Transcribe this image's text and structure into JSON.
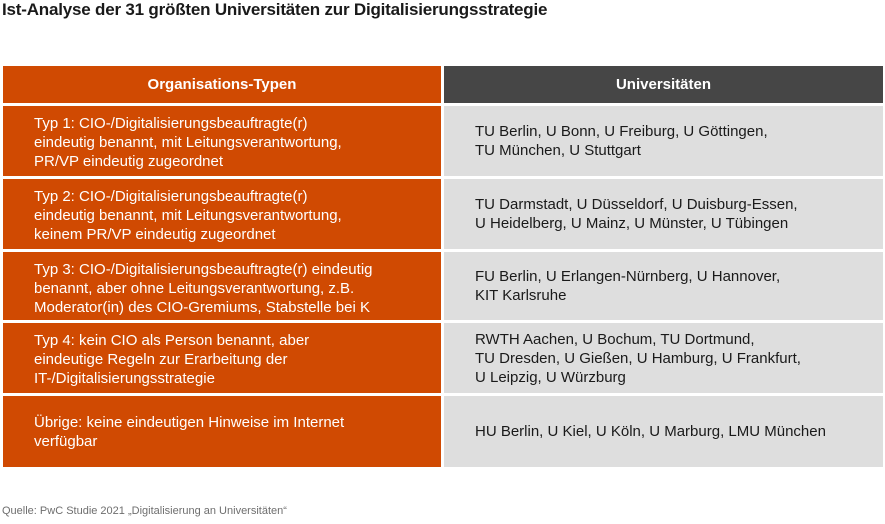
{
  "title": "Ist-Analyse der 31 größten Universitäten zur Digitalisierungsstrategie",
  "header": {
    "left": "Organisations-Typen",
    "right": "Universitäten"
  },
  "colors": {
    "orange": "#d04a02",
    "dark_gray": "#464646",
    "light_gray": "#dedede"
  },
  "rows": [
    {
      "type_lines": [
        "Typ 1: CIO-/Digitalisierungsbeauftragte(r)",
        "eindeutig benannt, mit Leitungsverantwortung,",
        "PR/VP eindeutig zugeordnet"
      ],
      "uni_lines": [
        "TU Berlin, U Bonn, U Freiburg, U Göttingen,",
        "TU München, U Stuttgart"
      ]
    },
    {
      "type_lines": [
        "Typ 2: CIO-/Digitalisierungsbeauftragte(r)",
        "eindeutig benannt, mit Leitungsverantwortung,",
        "keinem PR/VP eindeutig zugeordnet"
      ],
      "uni_lines": [
        "TU Darmstadt, U Düsseldorf, U Duisburg-Essen,",
        "U Heidelberg, U Mainz, U Münster, U Tübingen"
      ]
    },
    {
      "type_lines": [
        "Typ 3: CIO-/Digitalisierungsbeauftragte(r) eindeutig",
        "benannt, aber ohne Leitungsverantwortung, z.B.",
        "Moderator(in) des CIO-Gremiums, Stabstelle bei K"
      ],
      "uni_lines": [
        "FU Berlin, U Erlangen-Nürnberg, U Hannover,",
        "KIT Karlsruhe"
      ]
    },
    {
      "type_lines": [
        "Typ 4: kein CIO als Person benannt, aber",
        "eindeutige Regeln zur Erarbeitung der",
        "IT-/Digitalisierungsstrategie"
      ],
      "uni_lines": [
        "RWTH Aachen, U Bochum, TU Dortmund,",
        "TU Dresden, U Gießen, U Hamburg, U Frankfurt,",
        "U Leipzig, U Würzburg"
      ]
    },
    {
      "type_lines": [
        "Übrige: keine eindeutigen Hinweise im Internet",
        "verfügbar"
      ],
      "uni_lines": [
        "HU Berlin, U Kiel, U Köln, U Marburg, LMU München"
      ]
    }
  ],
  "source": "Quelle: PwC Studie 2021 „Digitalisierung an Universitäten“"
}
